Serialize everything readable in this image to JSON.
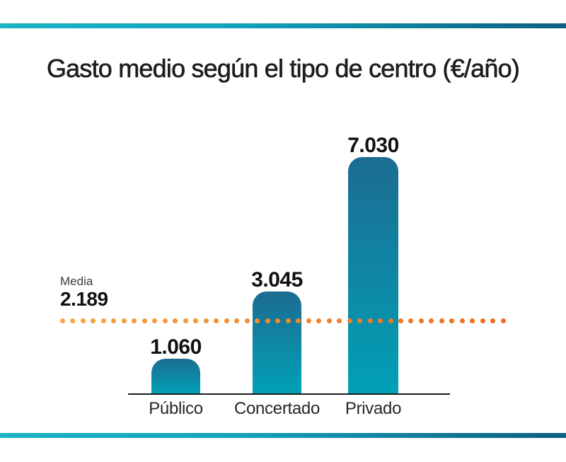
{
  "page": {
    "title": "Gasto medio según el tipo de centro (€/año)"
  },
  "chart_data": {
    "type": "bar",
    "title": "Gasto medio según el tipo de centro (€/año)",
    "unit": "€/año",
    "categories": [
      "Público",
      "Concertado",
      "Privado"
    ],
    "values": [
      1060,
      3045,
      7030
    ],
    "value_labels": [
      "1.060",
      "3.045",
      "7.030"
    ],
    "mean": {
      "label": "Media",
      "value": 2189,
      "display": "2.189"
    },
    "ylim": [
      0,
      7030
    ],
    "grid": false,
    "legend": "none",
    "colors": {
      "bar_gradient_top": "#1C6C92",
      "bar_gradient_bottom": "#01A1B6",
      "mean_dot_left": "#F9A440",
      "mean_dot_right": "#EE6B1C",
      "axis_line": "#1A1A1A",
      "value_text": "#111111",
      "category_text": "#272726"
    }
  },
  "decor": {
    "rule_gradient_left": "#1AB4C4",
    "rule_gradient_right": "#0E5E82"
  }
}
